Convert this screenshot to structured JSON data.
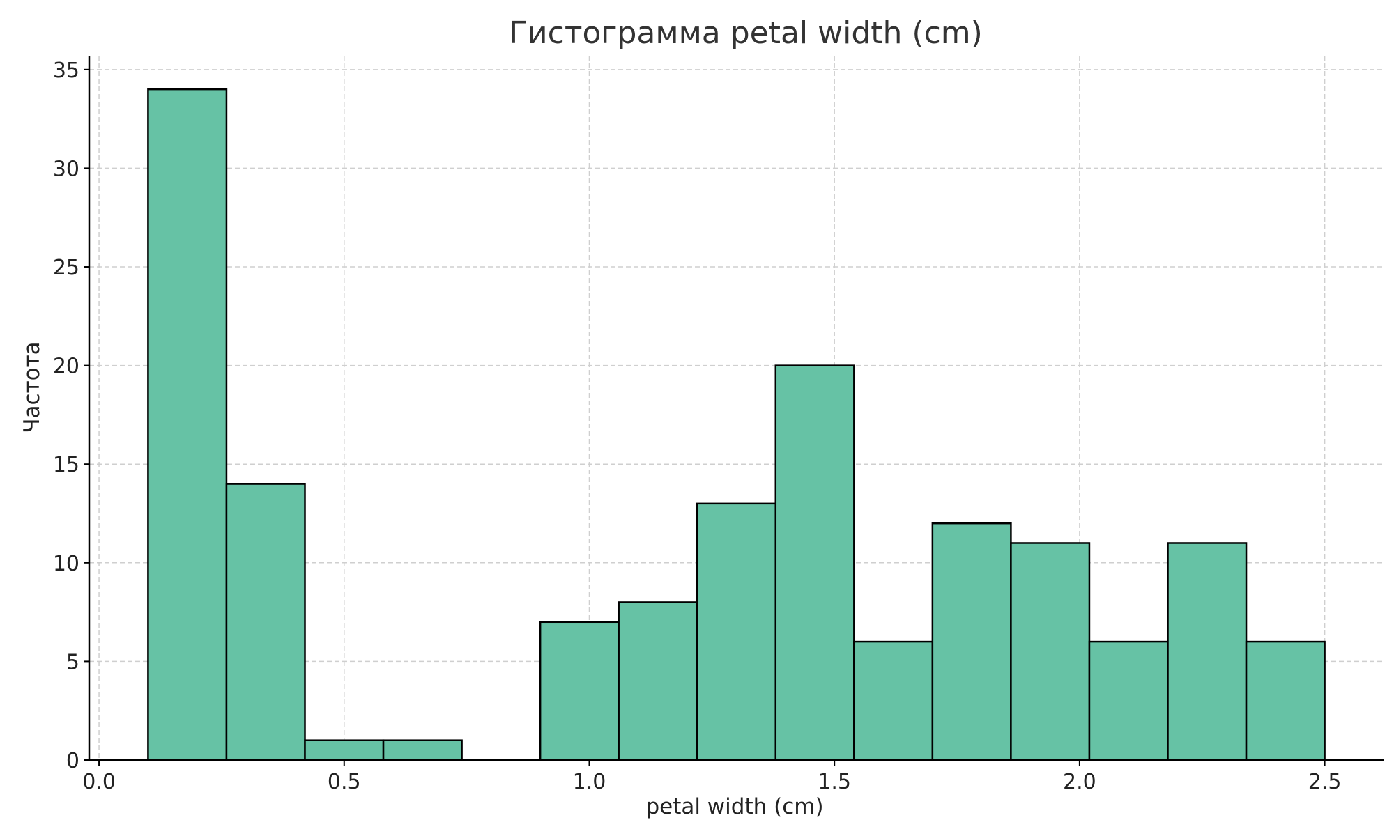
{
  "chart_data": {
    "type": "bar",
    "title": "Гистограмма petal width (cm)",
    "xlabel": "petal width (cm)",
    "ylabel": "Частота",
    "xlim": [
      -0.02,
      2.62
    ],
    "ylim": [
      0,
      35.7
    ],
    "xticks": [
      {
        "value": 0.0,
        "label": "0.0"
      },
      {
        "value": 0.5,
        "label": "0.5"
      },
      {
        "value": 1.0,
        "label": "1.0"
      },
      {
        "value": 1.5,
        "label": "1.5"
      },
      {
        "value": 2.0,
        "label": "2.0"
      },
      {
        "value": 2.5,
        "label": "2.5"
      }
    ],
    "yticks": [
      {
        "value": 0,
        "label": "0"
      },
      {
        "value": 5,
        "label": "5"
      },
      {
        "value": 10,
        "label": "10"
      },
      {
        "value": 15,
        "label": "15"
      },
      {
        "value": 20,
        "label": "20"
      },
      {
        "value": 25,
        "label": "25"
      },
      {
        "value": 30,
        "label": "30"
      },
      {
        "value": 35,
        "label": "35"
      }
    ],
    "bin_edges": [
      0.1,
      0.26,
      0.42,
      0.58,
      0.74,
      0.9,
      1.06,
      1.22,
      1.38,
      1.54,
      1.7,
      1.86,
      2.02,
      2.18,
      2.34,
      2.5
    ],
    "values": [
      34,
      14,
      1,
      1,
      0,
      7,
      8,
      13,
      20,
      6,
      12,
      11,
      6,
      11,
      6
    ],
    "bar_color": "#66c2a5",
    "edge_color": "#000000",
    "grid": true
  }
}
